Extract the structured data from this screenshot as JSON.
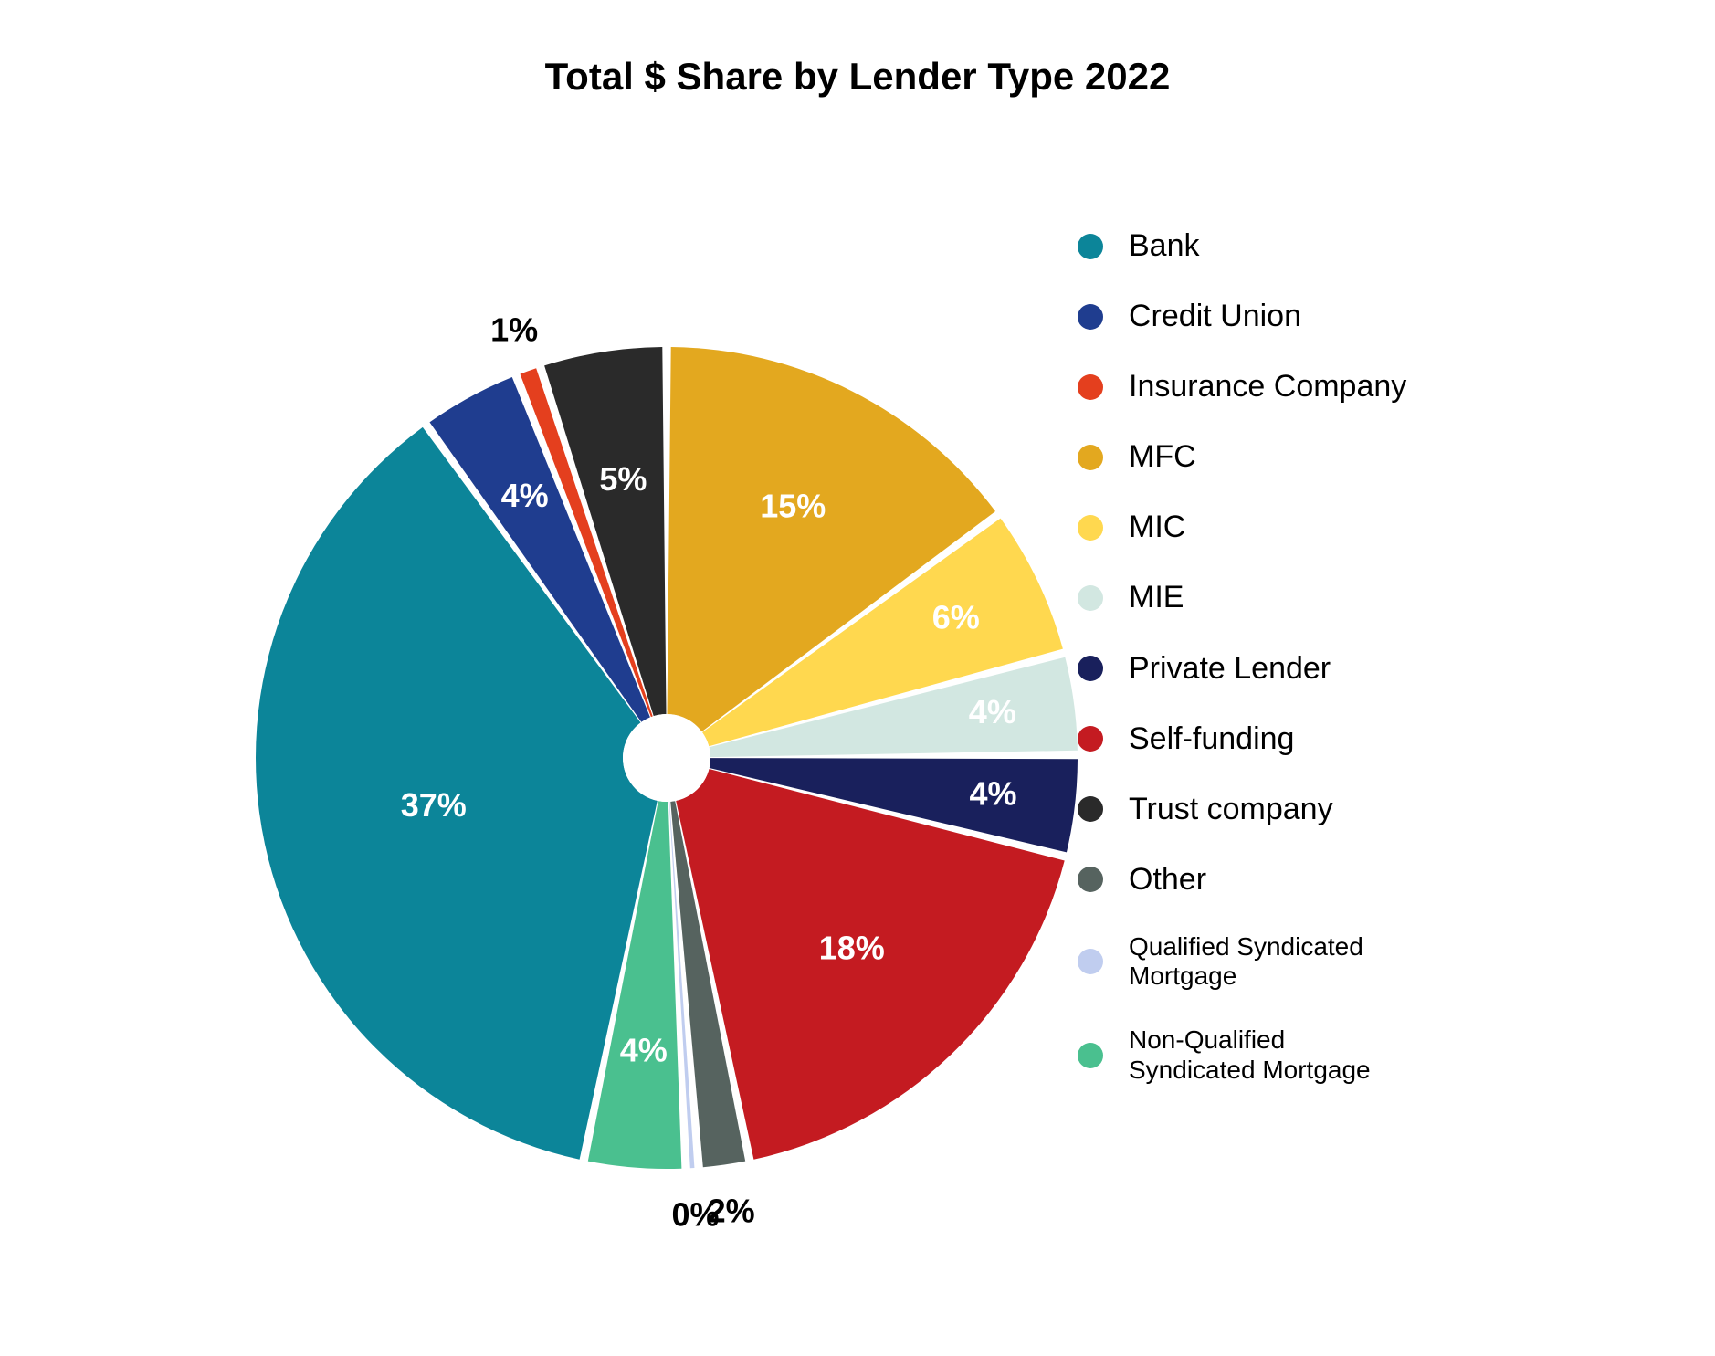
{
  "chart": {
    "type": "pie",
    "title": "Total $ Share by Lender Type 2022",
    "title_fontsize": 42,
    "title_fontweight": "bold",
    "title_color": "#000000",
    "background_color": "#ffffff",
    "radius": 450,
    "inner_radius": 48,
    "slice_gap_deg": 1.2,
    "start_angle_deg": -90,
    "direction": "clockwise",
    "data_label_fontsize": 36,
    "data_label_fontweight": "bold",
    "data_label_color_inside": "#ffffff",
    "data_label_color_outside": "#000000",
    "legend_fontsize": 34,
    "legend_fontsize_small": 28,
    "legend_swatch_radius": 14,
    "slices": [
      {
        "label": "MFC",
        "value": 15,
        "color": "#e3a81f",
        "text": "15%",
        "text_inside": true,
        "label_r": 0.68
      },
      {
        "label": "MIC",
        "value": 6,
        "color": "#ffd84f",
        "text": "6%",
        "text_inside": true,
        "label_r": 0.78
      },
      {
        "label": "MIE",
        "value": 4,
        "color": "#d2e7e1",
        "text": "4%",
        "text_inside": true,
        "label_r": 0.8
      },
      {
        "label": "Private Lender",
        "value": 4,
        "color": "#19205c",
        "text": "4%",
        "text_inside": true,
        "label_r": 0.8
      },
      {
        "label": "Self-funding",
        "value": 18,
        "color": "#c41b21",
        "text": "18%",
        "text_inside": true,
        "label_r": 0.65
      },
      {
        "label": "Other",
        "value": 2,
        "color": "#56635f",
        "text": "2%",
        "text_inside": false,
        "label_r": 1.12
      },
      {
        "label": "Qualified Syndicated Mortgage",
        "value": 0.5,
        "color": "#c0cdef",
        "text": "0%",
        "text_inside": false,
        "label_r": 1.12
      },
      {
        "label": "Non-Qualified Syndicated Mortgage",
        "value": 4,
        "color": "#4ac08f",
        "text": "4%",
        "text_inside": true,
        "label_r": 0.72
      },
      {
        "label": "Bank",
        "value": 37,
        "color": "#0c8599",
        "text": "37%",
        "text_inside": true,
        "label_r": 0.58
      },
      {
        "label": "Credit Union",
        "value": 4,
        "color": "#1f3d8f",
        "text": "4%",
        "text_inside": true,
        "label_r": 0.72
      },
      {
        "label": "Insurance Company",
        "value": 1,
        "color": "#e43f1e",
        "text": "1%",
        "text_inside": false,
        "label_r": 1.1
      },
      {
        "label": "Trust company",
        "value": 5,
        "color": "#2a2a2a",
        "text": "5%",
        "text_inside": true,
        "label_r": 0.68
      }
    ],
    "legend_order": [
      "Bank",
      "Credit Union",
      "Insurance Company",
      "MFC",
      "MIC",
      "MIE",
      "Private Lender",
      "Self-funding",
      "Trust company",
      "Other",
      "Qualified Syndicated Mortgage",
      "Non-Qualified Syndicated Mortgage"
    ],
    "legend_small_labels": [
      "Qualified Syndicated Mortgage",
      "Non-Qualified Syndicated Mortgage"
    ],
    "legend_wrap": {
      "Qualified Syndicated Mortgage": "Qualified Syndicated\nMortgage",
      "Non-Qualified Syndicated Mortgage": "Non-Qualified\nSyndicated Mortgage"
    }
  }
}
